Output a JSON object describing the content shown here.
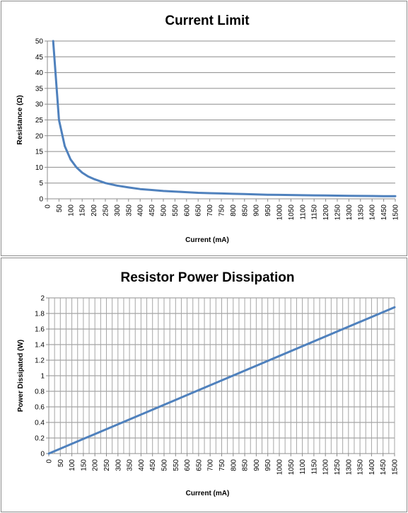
{
  "chart_data": [
    {
      "type": "line",
      "title": "Current Limit",
      "xlabel": "Current (mA)",
      "ylabel": "Resistance (Ω)",
      "xlim": [
        0,
        1500
      ],
      "ylim": [
        0,
        50
      ],
      "yticks": [
        0,
        5,
        10,
        15,
        20,
        25,
        30,
        35,
        40,
        45,
        50
      ],
      "categories": [
        "0",
        "50",
        "100",
        "150",
        "200",
        "250",
        "300",
        "350",
        "400",
        "450",
        "500",
        "550",
        "600",
        "650",
        "700",
        "750",
        "800",
        "850",
        "900",
        "950",
        "1000",
        "1050",
        "1100",
        "1150",
        "1200",
        "1250",
        "1300",
        "1350",
        "1400",
        "1450",
        "1500"
      ],
      "grid": "horizontal",
      "series": [
        {
          "color": "#4f81bd",
          "x": [
            25,
            50,
            75,
            100,
            125,
            150,
            175,
            200,
            250,
            300,
            350,
            400,
            450,
            500,
            550,
            600,
            650,
            700,
            750,
            800,
            850,
            900,
            950,
            1000,
            1050,
            1100,
            1150,
            1200,
            1250,
            1300,
            1350,
            1400,
            1450,
            1500
          ],
          "y": [
            50,
            25,
            16.7,
            12.5,
            10,
            8.3,
            7.1,
            6.3,
            5,
            4.2,
            3.6,
            3.1,
            2.8,
            2.5,
            2.3,
            2.1,
            1.9,
            1.8,
            1.7,
            1.6,
            1.5,
            1.4,
            1.3,
            1.25,
            1.2,
            1.15,
            1.1,
            1.05,
            1.0,
            0.96,
            0.93,
            0.89,
            0.86,
            0.83
          ]
        }
      ]
    },
    {
      "type": "line",
      "title": "Resistor Power Dissipation",
      "xlabel": "Current (mA)",
      "ylabel": "Power Dissipated (W)",
      "xlim": [
        0,
        1500
      ],
      "ylim": [
        0,
        2
      ],
      "yticks": [
        0,
        0.2,
        0.4,
        0.6,
        0.8,
        1,
        1.2,
        1.4,
        1.6,
        1.8,
        2
      ],
      "categories": [
        "0",
        "50",
        "100",
        "150",
        "200",
        "250",
        "300",
        "350",
        "400",
        "450",
        "500",
        "550",
        "600",
        "650",
        "700",
        "750",
        "800",
        "850",
        "900",
        "950",
        "1000",
        "1050",
        "1100",
        "1150",
        "1200",
        "1250",
        "1300",
        "1350",
        "1400",
        "1450",
        "1500"
      ],
      "grid": "both",
      "series": [
        {
          "color": "#4f81bd",
          "x": [
            0,
            1500
          ],
          "y": [
            0,
            1.88
          ]
        }
      ]
    }
  ]
}
